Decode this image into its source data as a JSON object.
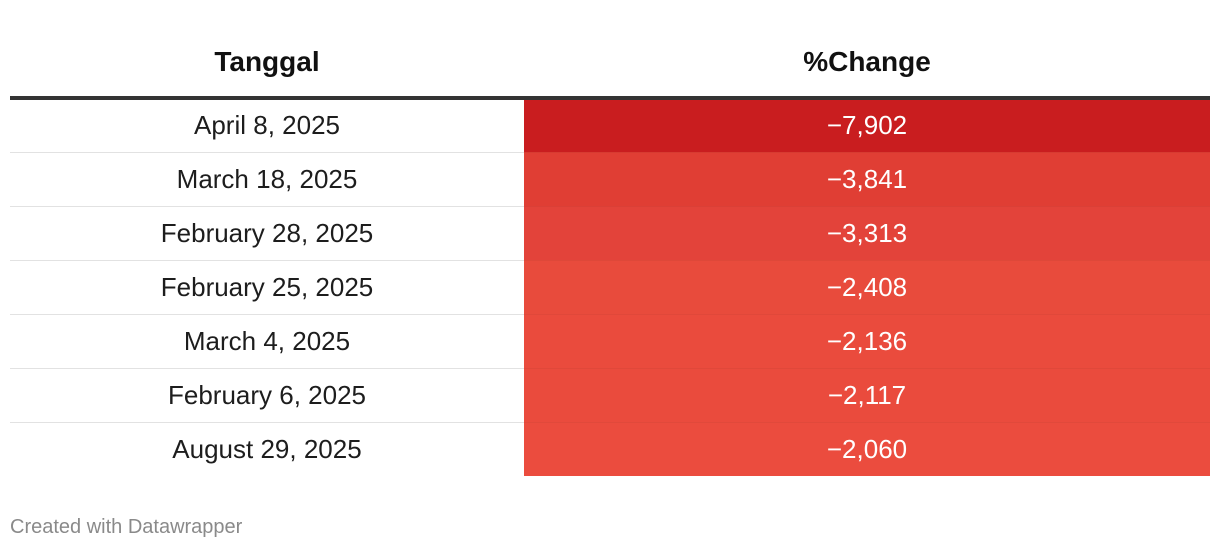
{
  "chart_data": {
    "type": "table",
    "columns": [
      "Tanggal",
      "%Change"
    ],
    "rows": [
      {
        "date": "April 8, 2025",
        "change_label": "−7,902",
        "change": -7.902,
        "color": "#c91d1f"
      },
      {
        "date": "March 18, 2025",
        "change_label": "−3,841",
        "change": -3.841,
        "color": "#e03e34"
      },
      {
        "date": "February 28, 2025",
        "change_label": "−3,313",
        "change": -3.313,
        "color": "#e3433a"
      },
      {
        "date": "February 25, 2025",
        "change_label": "−2,408",
        "change": -2.408,
        "color": "#e84b3c"
      },
      {
        "date": "March 4, 2025",
        "change_label": "−2,136",
        "change": -2.136,
        "color": "#ea4b3d"
      },
      {
        "date": "February 6, 2025",
        "change_label": "−2,117",
        "change": -2.117,
        "color": "#ea4b3d"
      },
      {
        "date": "August 29, 2025",
        "change_label": "−2,060",
        "change": -2.06,
        "color": "#eb4c3e"
      }
    ]
  },
  "footer": {
    "credit": "Created with Datawrapper"
  },
  "colors": {
    "header_rule": "#333333",
    "row_divider": "#e2e2e2",
    "credit_text": "#8a8a8a"
  }
}
